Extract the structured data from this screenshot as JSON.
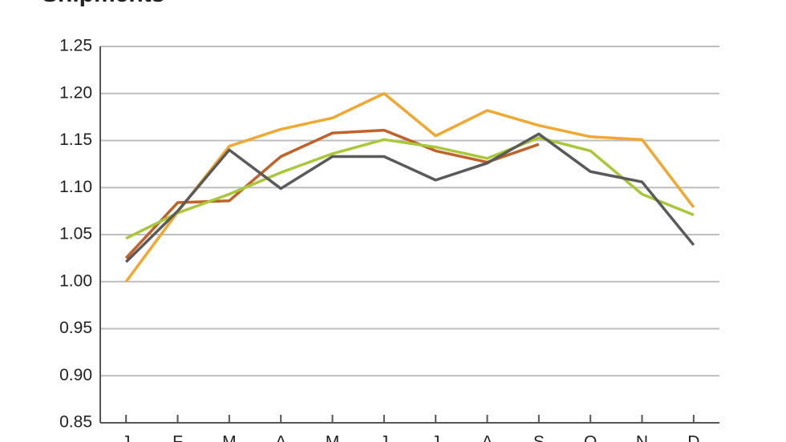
{
  "chart_data": {
    "type": "line",
    "title": "Shipments",
    "categories": [
      "J",
      "F",
      "M",
      "A",
      "M",
      "J",
      "J",
      "A",
      "S",
      "O",
      "N",
      "D"
    ],
    "series": [
      {
        "color": "#f0a830",
        "values": [
          1.0,
          1.074,
          1.144,
          1.162,
          1.174,
          1.2,
          1.155,
          1.182,
          1.166,
          1.154,
          1.151,
          1.079
        ]
      },
      {
        "color": "#c0622a",
        "values": [
          1.025,
          1.084,
          1.086,
          1.133,
          1.158,
          1.161,
          1.139,
          1.127,
          1.146,
          null,
          null,
          null
        ]
      },
      {
        "color": "#a8c83a",
        "values": [
          1.046,
          1.073,
          1.093,
          1.116,
          1.136,
          1.151,
          1.143,
          1.131,
          1.153,
          1.139,
          1.093,
          1.071
        ]
      },
      {
        "color": "#5a5a5a",
        "values": [
          1.021,
          1.075,
          1.14,
          1.099,
          1.133,
          1.133,
          1.108,
          1.126,
          1.157,
          1.117,
          1.106,
          1.039
        ]
      }
    ],
    "ylim": [
      0.85,
      1.25
    ],
    "yticks": [
      0.85,
      {
        "value": 0.9,
        "label": "0.90"
      },
      0.95,
      {
        "value": 1.0,
        "label": "1.00"
      },
      1.05,
      {
        "value": 1.1,
        "label": "1.10"
      },
      1.15,
      {
        "value": 1.2,
        "label": "1.20"
      },
      1.25
    ],
    "grid": true
  }
}
